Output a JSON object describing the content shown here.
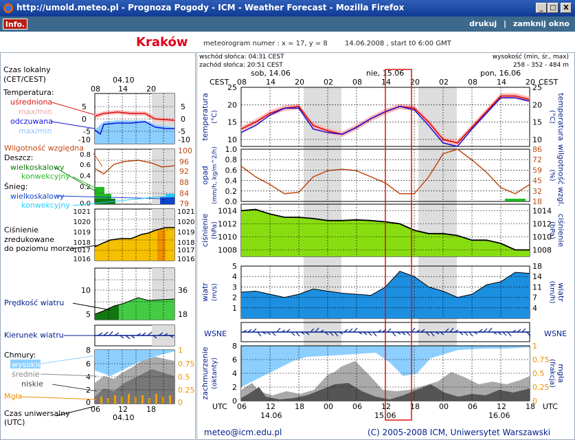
{
  "window": {
    "title": "http://umold.meteo.pl - Prognoza Pogody - ICM - Weather Forecast - Mozilla Firefox",
    "minimize": "_",
    "maximize": "□",
    "close": "X"
  },
  "toolbar": {
    "info": "Info.",
    "print": "drukuj",
    "separator": "|",
    "close_window": "zamknij okno"
  },
  "header": {
    "city": "Kraków",
    "meteogram_label": "meteorogram numer : x = 17, y = 8",
    "date_start": "14.06.2008 , start t0 6:00 GMT"
  },
  "sun": {
    "sunrise": "wschód słońca: 04:31 CEST",
    "sunset": "zachód słońca: 20:51 CEST"
  },
  "elevation": {
    "label": "wysokość (min, śr., max)",
    "values": "258 - 352 - 484 m"
  },
  "legend": {
    "local_time": "Czas lokalny",
    "local_time_tz": "(CET/CEST)",
    "legend_date": "04.10",
    "legend_hours": [
      "08",
      "14",
      "20"
    ],
    "temperature": "Temperatura:",
    "averaged": "uśredniona",
    "maxmin1": "max/min",
    "measured": "odczuwana",
    "maxmin2": "max/min",
    "temp_ticks_left": [
      "5",
      "0",
      "-5",
      "-10"
    ],
    "temp_ticks_right": [
      "5",
      "0",
      "-5",
      "-10"
    ],
    "humidity": "Wilgotność względna",
    "rain": "Deszcz:",
    "rain_large": "wielkoskalowy",
    "rain_conv": "konwekcyjny",
    "snow": "Śnieg:",
    "snow_large": "wielkoskalowy",
    "snow_conv": "konwekcyjny",
    "precip_ticks": [
      "0.8",
      "0.6",
      "0.4",
      "0.2",
      "0.0"
    ],
    "humid_ticks": [
      "100",
      "96",
      "92",
      "88",
      "84",
      "79"
    ],
    "pressure": "Ciśnienie",
    "pressure2": "zredukowane",
    "pressure3": "do poziomu morza",
    "press_ticks_left": [
      "1021",
      "1020",
      "1019",
      "1018",
      "1017",
      "1016"
    ],
    "press_ticks_right": [
      "1021",
      "1020",
      "1019",
      "1018",
      "1017",
      "1016"
    ],
    "wind_speed": "Prędkość wiatru",
    "wind_ticks_left": [
      "10",
      "5"
    ],
    "wind_ticks_right": [
      "36",
      "18"
    ],
    "wind_dir": "Kierunek wiatru",
    "clouds": "Chmury:",
    "high": "wysokie",
    "middle": "średnie",
    "low": "niskie",
    "fog": "Mgła",
    "cloud_ticks_left": [
      "8",
      "6",
      "4",
      "2",
      "0"
    ],
    "cloud_ticks_right": [
      "1",
      "0.75",
      "0.5",
      "0.25",
      "0"
    ],
    "utc_label": "Czas uniwersalny",
    "utc_label2": "(UTC)",
    "utc_hours": [
      "06",
      "12",
      "18"
    ],
    "utc_date": "04.10"
  },
  "main": {
    "day_labels": [
      "sob, 14.06",
      "nie, 15.06",
      "pon, 16.06"
    ],
    "cest": "CEST",
    "top_hours": [
      "08",
      "14",
      "20",
      "02",
      "08",
      "14",
      "20",
      "02",
      "08",
      "14",
      "20"
    ],
    "temp_label": "temperatura",
    "temp_unit": "(°C)",
    "temp_ticks": [
      "25",
      "20",
      "15",
      "10"
    ],
    "precip_label": "opad",
    "precip_unit": "(mm/h, kg/m^2/h)",
    "precip_ticks": [
      "1.0",
      "0.8",
      "0.6",
      "0.4",
      "0.2",
      "0.0"
    ],
    "humid_label": "wilgotność wzgl.",
    "humid_unit": "(%)",
    "humid_ticks": [
      "86",
      "72",
      "59",
      "45",
      "32",
      "18"
    ],
    "press_label": "ciśnienie",
    "press_unit": "(hPa)",
    "press_ticks": [
      "1014",
      "1012",
      "1010",
      "1008"
    ],
    "wind_label": "wiatr",
    "wind_unit_left": "(m/s)",
    "wind_unit_right": "(km/h)",
    "wind_ticks_left": [
      "5",
      "4",
      "3",
      "2",
      "1"
    ],
    "wind_ticks_right": [
      "18",
      "14",
      "11",
      "7",
      "4"
    ],
    "compass_left": "WSNE",
    "compass_right": "WSNE",
    "cloud_label": "zachmurzenie",
    "cloud_unit": "(oktanty)",
    "fog_label": "mgła",
    "fog_unit": "(frakcja)",
    "cloud_ticks_left": [
      "8",
      "6",
      "4",
      "2",
      "0"
    ],
    "cloud_ticks_right": [
      "1",
      "0.75",
      "0.5",
      "0.25",
      "0"
    ],
    "utc": "UTC",
    "bottom_hours": [
      "06",
      "12",
      "18",
      "00",
      "06",
      "12",
      "18",
      "00",
      "06",
      "12",
      "18"
    ],
    "bottom_dates": [
      "14.06",
      "15.06",
      "16.06"
    ]
  },
  "footer": {
    "email": "meteo@icm.edu.pl",
    "copyright": "(C) 2005-2008 ICM, Uniwersytet Warszawski"
  },
  "colors": {
    "title_bar": "#0f3a94",
    "top_bar": "#3d6a8c",
    "city": "#e2001a",
    "temp_avg": "#dd1111",
    "temp_feel": "#1111dd",
    "humidity": "#c04a10",
    "pressure_fill": "#88dd11",
    "wind_fill": "#1d8fe0",
    "cloud_high": "#8ccfff",
    "night_band": "#dddddd",
    "highlight": "#dd1111"
  },
  "chart_data": [
    {
      "type": "line",
      "title": "temperatura (°C)",
      "x": [
        "08",
        "11",
        "14",
        "17",
        "20",
        "23",
        "02",
        "05",
        "08",
        "11",
        "14",
        "17",
        "20",
        "23",
        "02",
        "05",
        "08",
        "11",
        "14",
        "17",
        "20"
      ],
      "series": [
        {
          "name": "uśredniona",
          "values": [
            13,
            15,
            17.5,
            19,
            19.5,
            14,
            12.5,
            11.5,
            13.5,
            16,
            18,
            19.5,
            19,
            15,
            10,
            9,
            13.5,
            18,
            22.5,
            22.5,
            21.5
          ]
        },
        {
          "name": "odczuwana",
          "values": [
            12,
            14,
            17,
            19,
            19,
            13,
            12,
            11.5,
            13.5,
            16,
            18,
            19.5,
            18.5,
            14,
            9,
            8,
            13,
            17.5,
            22,
            22,
            21
          ]
        }
      ],
      "ylim": [
        8,
        25
      ]
    },
    {
      "type": "line",
      "title": "wilgotność wzgl. (%)",
      "x": [
        "08",
        "11",
        "14",
        "17",
        "20",
        "23",
        "02",
        "05",
        "08",
        "11",
        "14",
        "17",
        "20",
        "23",
        "02",
        "05",
        "08",
        "11",
        "14",
        "17",
        "20"
      ],
      "series": [
        {
          "name": "wilgotność",
          "values": [
            64,
            50,
            40,
            28,
            30,
            50,
            58,
            60,
            58,
            50,
            42,
            28,
            28,
            50,
            80,
            86,
            72,
            56,
            36,
            28,
            40
          ]
        }
      ],
      "ylim": [
        18,
        86
      ]
    },
    {
      "type": "area",
      "title": "ciśnienie (hPa)",
      "x": [
        "08",
        "11",
        "14",
        "17",
        "20",
        "23",
        "02",
        "05",
        "08",
        "11",
        "14",
        "17",
        "20",
        "23",
        "02",
        "05",
        "08",
        "11",
        "14",
        "17",
        "20"
      ],
      "series": [
        {
          "name": "ciśnienie",
          "values": [
            1014,
            1014.2,
            1013.5,
            1013,
            1013,
            1012.8,
            1012.5,
            1012.5,
            1012.6,
            1012.5,
            1012.3,
            1012,
            1011,
            1010.5,
            1010.5,
            1010.2,
            1009.5,
            1009.5,
            1009,
            1008,
            1008
          ]
        }
      ],
      "ylim": [
        1007,
        1015
      ]
    },
    {
      "type": "area",
      "title": "wiatr (m/s)",
      "x": [
        "08",
        "11",
        "14",
        "17",
        "20",
        "23",
        "02",
        "05",
        "08",
        "11",
        "14",
        "17",
        "20",
        "23",
        "02",
        "05",
        "08",
        "11",
        "14",
        "17",
        "20"
      ],
      "series": [
        {
          "name": "wiatr",
          "values": [
            2.5,
            2.6,
            2.3,
            2,
            2.3,
            2.8,
            2.6,
            2.4,
            2.3,
            2.2,
            3,
            4.5,
            4,
            3,
            2.6,
            2,
            2.3,
            3.2,
            3.5,
            4.4,
            4.3
          ]
        }
      ],
      "ylim": [
        0,
        5
      ]
    }
  ]
}
